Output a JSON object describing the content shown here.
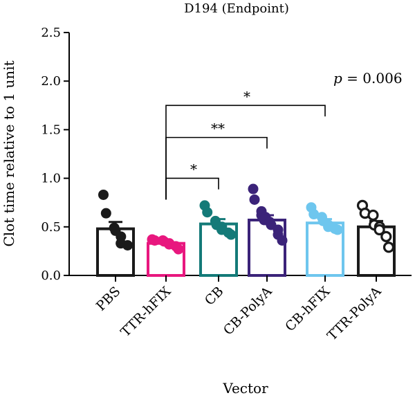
{
  "chart_data": {
    "type": "bar",
    "title": "D194 (Endpoint)",
    "xlabel": "Vector",
    "ylabel": "Clot time relative to 1 unit",
    "ylim": [
      0,
      2.5
    ],
    "yticks": [
      "0.0",
      "0.5",
      "1.0",
      "1.5",
      "2.0",
      "2.5"
    ],
    "ytick_values": [
      0,
      0.5,
      1.0,
      1.5,
      2.0,
      2.5
    ],
    "grid": false,
    "legend": "none",
    "annotation": {
      "p_label": "p",
      "p_text": " = 0.006"
    },
    "categories": [
      "PBS",
      "TTR-hFIX",
      "CB",
      "CB-PolyA",
      "CB-hFIX",
      "TTR-PolyA"
    ],
    "series": [
      {
        "category": "PBS",
        "mean": 0.48,
        "sem": 0.07,
        "color": "#1a1a1a",
        "marker": "filled",
        "points": [
          0.83,
          0.64,
          0.49,
          0.46,
          0.4,
          0.33,
          0.31
        ]
      },
      {
        "category": "TTR-hFIX",
        "mean": 0.33,
        "sem": 0.02,
        "color": "#e8177e",
        "marker": "filled",
        "points": [
          0.37,
          0.36,
          0.36,
          0.35,
          0.33,
          0.32,
          0.3,
          0.27
        ]
      },
      {
        "category": "CB",
        "mean": 0.53,
        "sem": 0.05,
        "color": "#147a78",
        "marker": "filled",
        "points": [
          0.72,
          0.65,
          0.56,
          0.52,
          0.5,
          0.47,
          0.44,
          0.42
        ]
      },
      {
        "category": "CB-PolyA",
        "mean": 0.57,
        "sem": 0.05,
        "color": "#3b2379",
        "marker": "filled",
        "points": [
          0.89,
          0.78,
          0.66,
          0.62,
          0.6,
          0.57,
          0.55,
          0.52,
          0.47,
          0.42,
          0.36
        ]
      },
      {
        "category": "CB-hFIX",
        "mean": 0.54,
        "sem": 0.04,
        "color": "#6ec6ee",
        "marker": "filled",
        "points": [
          0.7,
          0.63,
          0.6,
          0.56,
          0.52,
          0.5,
          0.48,
          0.47
        ]
      },
      {
        "category": "TTR-PolyA",
        "mean": 0.5,
        "sem": 0.06,
        "color": "#1a1a1a",
        "marker": "open",
        "points": [
          0.72,
          0.64,
          0.62,
          0.52,
          0.5,
          0.47,
          0.4,
          0.29
        ]
      }
    ],
    "comparisons": [
      {
        "from": "TTR-hFIX",
        "to": "CB",
        "label": "*",
        "level": 1.0
      },
      {
        "from": "TTR-hFIX",
        "to": "CB-PolyA",
        "label": "**",
        "level": 1.42
      },
      {
        "from": "TTR-hFIX",
        "to": "CB-hFIX",
        "label": "*",
        "level": 1.75
      }
    ]
  }
}
